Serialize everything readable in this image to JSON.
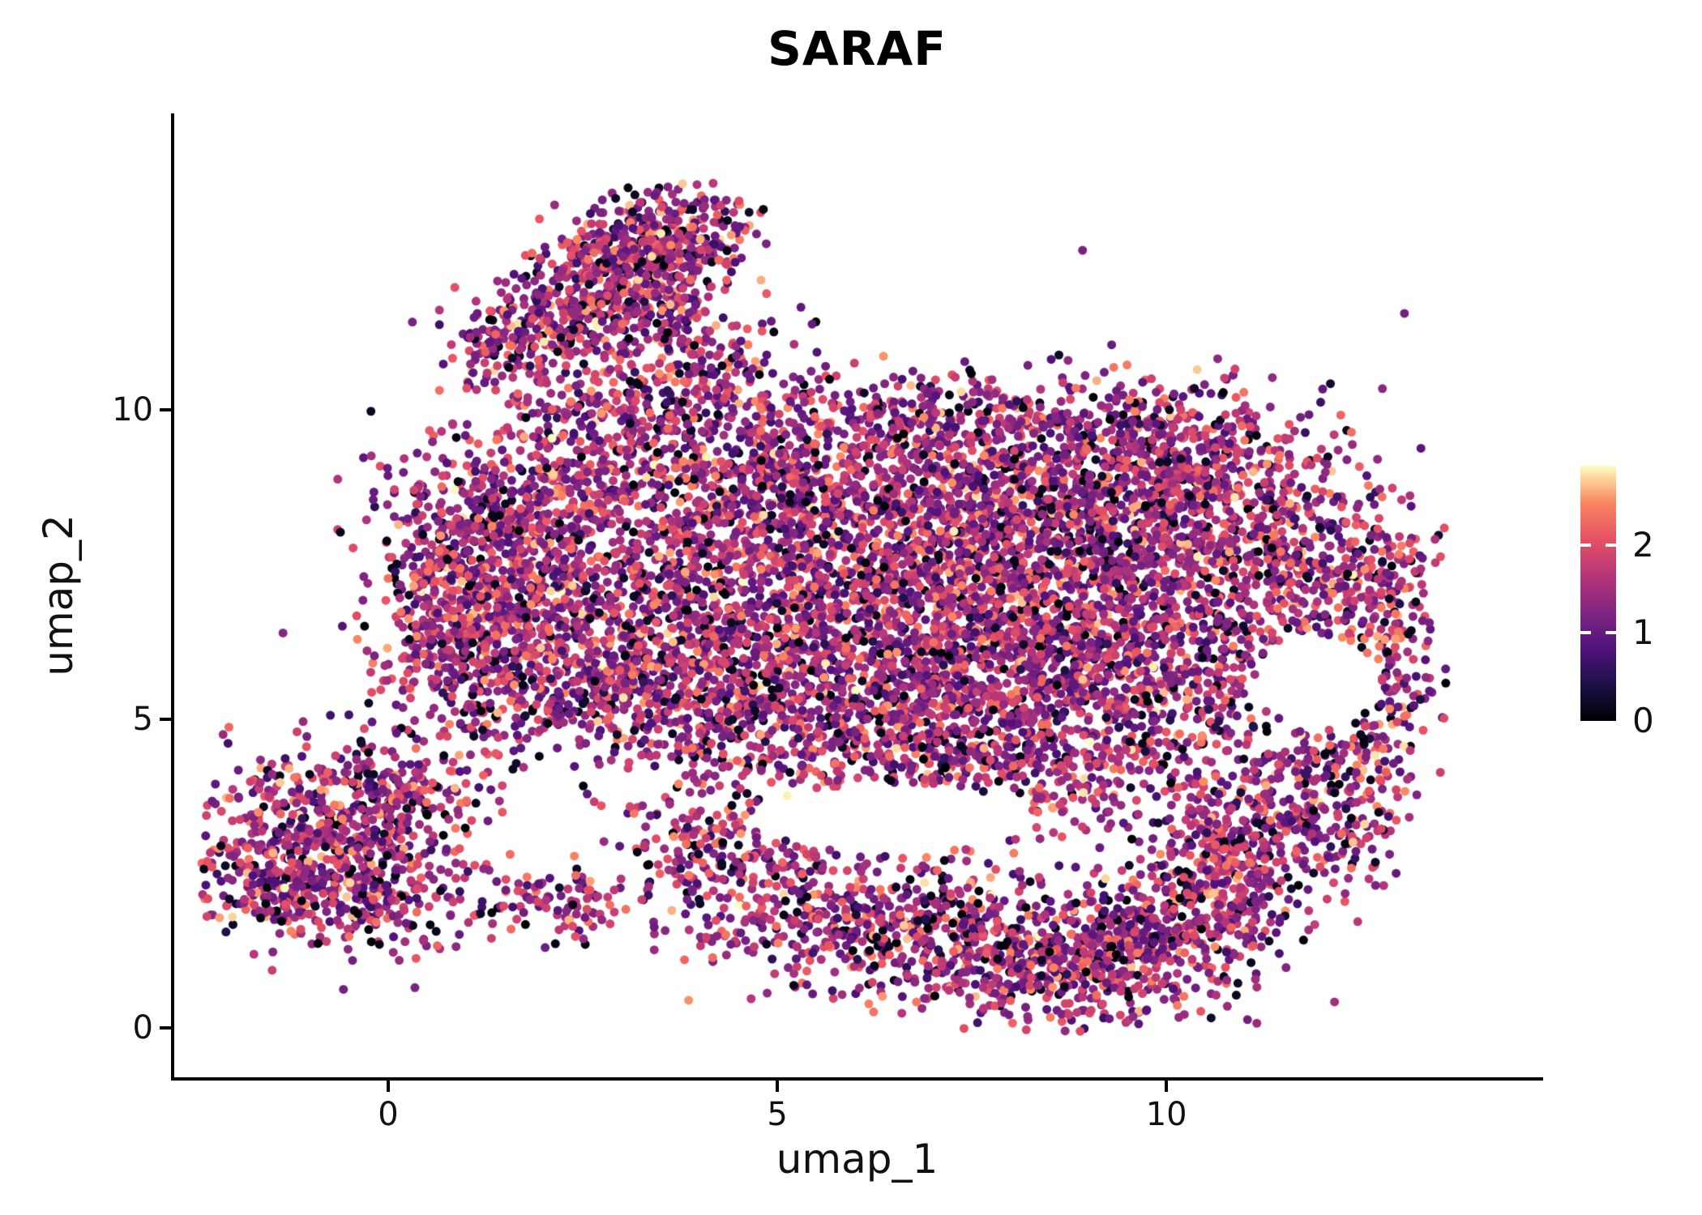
{
  "chart_data": {
    "type": "scatter",
    "variant": "umap-feature-plot",
    "title": "SARAF",
    "xlabel": "umap_1",
    "ylabel": "umap_2",
    "xlim": [
      -2.75,
      14.8
    ],
    "ylim": [
      -0.8,
      14.8
    ],
    "xticks": [
      0,
      5,
      10
    ],
    "yticks": [
      0,
      5,
      10
    ],
    "grid": false,
    "legend_position": "right",
    "point_radius_px": 5.5,
    "seed": 42,
    "colorbar": {
      "ticks": [
        0,
        1,
        2
      ],
      "domain": [
        0,
        2.9
      ],
      "colormap": "magma",
      "stops": [
        "#000004",
        "#1d1147",
        "#51127c",
        "#822681",
        "#b63679",
        "#e65164",
        "#fb8861",
        "#fcfdbf"
      ]
    },
    "value_mixture": [
      {
        "weight": 0.1,
        "type": "uniform",
        "min": 0.0,
        "max": 0.25
      },
      {
        "weight": 0.55,
        "type": "normal",
        "mean": 1.2,
        "sd": 0.35
      },
      {
        "weight": 0.25,
        "type": "normal",
        "mean": 1.9,
        "sd": 0.25
      },
      {
        "weight": 0.1,
        "type": "normal",
        "mean": 2.45,
        "sd": 0.2
      }
    ],
    "clusters": [
      [
        6.0,
        8.3,
        1.6,
        1.0,
        850
      ],
      [
        8.5,
        8.5,
        1.5,
        0.9,
        850
      ],
      [
        5.3,
        6.3,
        1.4,
        1.1,
        750
      ],
      [
        7.6,
        6.2,
        1.3,
        1.1,
        850
      ],
      [
        9.3,
        6.6,
        1.2,
        1.1,
        750
      ],
      [
        6.3,
        4.8,
        1.5,
        0.8,
        500
      ],
      [
        8.8,
        4.6,
        1.2,
        0.8,
        450
      ],
      [
        10.3,
        8.8,
        0.9,
        0.6,
        300
      ],
      [
        4.3,
        5.4,
        0.8,
        0.9,
        280
      ],
      [
        4.6,
        8.9,
        0.9,
        0.8,
        280
      ],
      [
        7.0,
        9.8,
        1.2,
        0.45,
        250
      ],
      [
        9.7,
        9.7,
        0.8,
        0.4,
        150
      ],
      [
        3.8,
        7.5,
        0.55,
        1.2,
        160
      ],
      [
        11.3,
        7.8,
        0.8,
        0.8,
        280
      ],
      [
        12.3,
        7.2,
        0.6,
        0.7,
        200
      ],
      [
        12.9,
        5.9,
        0.35,
        0.8,
        130
      ],
      [
        12.3,
        4.3,
        0.5,
        0.5,
        130
      ],
      [
        11.3,
        3.4,
        0.6,
        0.6,
        150
      ],
      [
        12.2,
        3.2,
        0.4,
        0.4,
        80
      ],
      [
        10.9,
        5.6,
        0.45,
        0.9,
        140
      ],
      [
        5.0,
        2.2,
        0.9,
        0.6,
        240
      ],
      [
        6.5,
        1.7,
        0.9,
        0.55,
        300
      ],
      [
        8.0,
        1.2,
        0.9,
        0.55,
        340
      ],
      [
        9.3,
        1.1,
        0.8,
        0.6,
        380
      ],
      [
        10.3,
        1.9,
        0.6,
        0.6,
        280
      ],
      [
        11.0,
        2.9,
        0.5,
        0.6,
        190
      ],
      [
        4.0,
        2.9,
        0.5,
        0.5,
        120
      ],
      [
        1.3,
        7.3,
        0.7,
        0.9,
        420
      ],
      [
        1.9,
        8.6,
        0.9,
        0.6,
        380
      ],
      [
        2.4,
        6.7,
        0.8,
        0.8,
        330
      ],
      [
        1.1,
        6.0,
        0.6,
        0.5,
        190
      ],
      [
        2.9,
        5.6,
        0.7,
        0.5,
        190
      ],
      [
        0.6,
        6.9,
        0.4,
        0.8,
        150
      ],
      [
        1.7,
        5.0,
        0.5,
        0.4,
        80
      ],
      [
        2.6,
        9.9,
        0.6,
        0.45,
        120
      ],
      [
        3.3,
        12.6,
        0.55,
        0.5,
        270
      ],
      [
        2.7,
        12.0,
        0.5,
        0.5,
        210
      ],
      [
        3.9,
        12.9,
        0.4,
        0.4,
        140
      ],
      [
        2.2,
        11.3,
        0.45,
        0.45,
        150
      ],
      [
        1.4,
        11.2,
        0.35,
        0.4,
        100
      ],
      [
        3.6,
        11.6,
        0.45,
        0.5,
        130
      ],
      [
        4.3,
        10.6,
        0.5,
        0.5,
        100
      ],
      [
        3.5,
        10.1,
        0.5,
        0.4,
        90
      ],
      [
        -0.9,
        3.3,
        0.75,
        0.7,
        380
      ],
      [
        -1.4,
        2.3,
        0.5,
        0.5,
        230
      ],
      [
        -0.2,
        2.3,
        0.6,
        0.5,
        230
      ],
      [
        0.3,
        3.9,
        0.5,
        0.45,
        150
      ],
      [
        1.7,
        2.1,
        0.5,
        0.3,
        60
      ],
      [
        2.6,
        1.9,
        0.3,
        0.25,
        40
      ]
    ],
    "voids": [
      {
        "x": 11.95,
        "y": 5.6,
        "rx": 0.8,
        "ry": 0.75
      },
      {
        "x": 6.5,
        "y": 3.4,
        "rx": 1.8,
        "ry": 0.55
      }
    ]
  }
}
